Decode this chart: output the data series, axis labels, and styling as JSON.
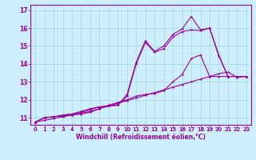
{
  "title": "",
  "xlabel": "Windchill (Refroidissement éolien,°C)",
  "background_color": "#cceeff",
  "grid_color": "#aadddd",
  "line_color": "#990099",
  "spine_color": "#9900aa",
  "xlim": [
    -0.5,
    23.5
  ],
  "ylim": [
    10.6,
    17.3
  ],
  "yticks": [
    11,
    12,
    13,
    14,
    15,
    16,
    17
  ],
  "xticks": [
    0,
    1,
    2,
    3,
    4,
    5,
    6,
    7,
    8,
    9,
    10,
    11,
    12,
    13,
    14,
    15,
    16,
    17,
    18,
    19,
    20,
    21,
    22,
    23
  ],
  "lines": [
    {
      "x": [
        0,
        1,
        2,
        3,
        4,
        5,
        6,
        7,
        8,
        9,
        10,
        11,
        12,
        13,
        14,
        15,
        16,
        17,
        18,
        19,
        20,
        21,
        22,
        23
      ],
      "y": [
        10.75,
        10.85,
        10.95,
        11.05,
        11.15,
        11.25,
        11.35,
        11.5,
        11.65,
        11.8,
        11.95,
        12.1,
        12.25,
        12.4,
        12.55,
        12.7,
        12.85,
        13.0,
        13.15,
        13.3,
        13.45,
        13.55,
        13.25,
        13.3
      ]
    },
    {
      "x": [
        0,
        1,
        2,
        3,
        4,
        5,
        6,
        7,
        8,
        9,
        10,
        11,
        12,
        13,
        14,
        15,
        16,
        17,
        18,
        19,
        20,
        21,
        22,
        23
      ],
      "y": [
        10.75,
        11.0,
        11.05,
        11.1,
        11.15,
        11.2,
        11.3,
        11.5,
        11.7,
        11.85,
        12.0,
        12.2,
        12.3,
        12.35,
        12.5,
        13.0,
        13.4,
        14.3,
        14.5,
        13.3,
        13.3,
        13.3,
        13.3,
        13.3
      ]
    },
    {
      "x": [
        0,
        1,
        2,
        3,
        4,
        5,
        6,
        7,
        8,
        9,
        10,
        11,
        12,
        13,
        14,
        15,
        16,
        17,
        18,
        19,
        20,
        21,
        22,
        23
      ],
      "y": [
        10.75,
        11.0,
        11.05,
        11.1,
        11.2,
        11.3,
        11.45,
        11.6,
        11.65,
        11.7,
        12.2,
        14.0,
        15.2,
        14.65,
        14.85,
        15.5,
        15.8,
        15.9,
        15.85,
        16.0,
        14.5,
        13.3,
        13.3,
        13.3
      ]
    },
    {
      "x": [
        0,
        1,
        2,
        3,
        4,
        5,
        6,
        7,
        8,
        9,
        10,
        11,
        12,
        13,
        14,
        15,
        16,
        17,
        18,
        19,
        20,
        21,
        22,
        23
      ],
      "y": [
        10.75,
        11.0,
        11.05,
        11.15,
        11.2,
        11.35,
        11.5,
        11.6,
        11.65,
        11.7,
        12.3,
        14.1,
        15.3,
        14.7,
        15.0,
        15.65,
        15.95,
        16.65,
        15.9,
        16.0,
        14.45,
        13.3,
        13.3,
        13.3
      ]
    }
  ]
}
